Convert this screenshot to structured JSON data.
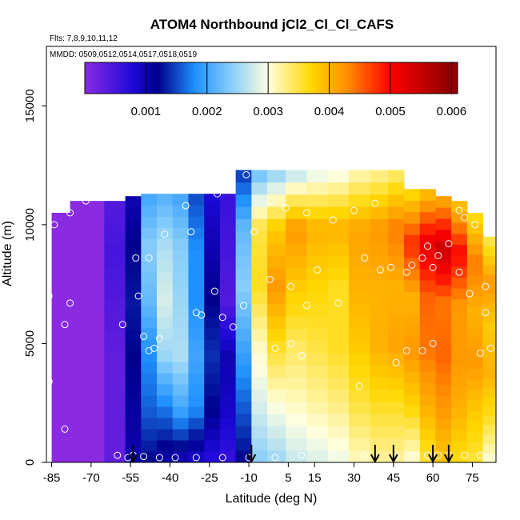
{
  "chart_data": {
    "type": "heatmap",
    "title": "ATOM4 Northbound jCl2_Cl_Cl_CAFS",
    "subtitle_flights": "Flts: 7,8,9,10,11,12",
    "subtitle_dates": "MMDD: 0509,0512,0514,0517,0518,0519",
    "xlabel": "Latitude (deg N)",
    "ylabel": "Altitude (m)",
    "xlim": [
      -87,
      84
    ],
    "ylim": [
      0,
      17500
    ],
    "x_ticks": [
      -85,
      -70,
      -55,
      -40,
      -25,
      -10,
      5,
      15,
      30,
      45,
      60,
      75
    ],
    "x_tick_labels": [
      "-85",
      "-70",
      "-55",
      "-40",
      "-25",
      "-10",
      "5",
      "15",
      "30",
      "45",
      "60",
      "75"
    ],
    "y_ticks": [
      0,
      5000,
      10000,
      15000
    ],
    "y_tick_labels": [
      "0",
      "5000",
      "10000",
      "15000"
    ],
    "colorbar": {
      "range": [
        0.0,
        0.0061
      ],
      "ticks": [
        0.001,
        0.002,
        0.003,
        0.004,
        0.005,
        0.006
      ],
      "tick_labels": [
        "0.001",
        "0.002",
        "0.003",
        "0.004",
        "0.005",
        "0.006"
      ]
    },
    "color_stops": [
      "#8a2be2",
      "#1c08d8",
      "#00008c",
      "#1e90ff",
      "#87cefa",
      "#ffffe0",
      "#ffd700",
      "#ff8c00",
      "#ff0000",
      "#8b0000"
    ],
    "colorbar_values": [
      0.0,
      0.0008,
      0.0012,
      0.0018,
      0.0024,
      0.003,
      0.0037,
      0.0043,
      0.005,
      0.006
    ],
    "grid": false,
    "field_columns": [
      {
        "lat": -86,
        "top": 10500,
        "bottom": 0,
        "values": [
          0.0,
          0.0,
          0.0,
          0.0,
          0.0,
          0.0
        ]
      },
      {
        "lat": -70,
        "top": 11000,
        "bottom": 0,
        "values": [
          0.0,
          0.0,
          0.0,
          0.0,
          0.0,
          0.0
        ]
      },
      {
        "lat": -60,
        "top": 11000,
        "bottom": 0,
        "values": [
          0.0003,
          0.0003,
          0.0003,
          0.0004,
          0.0005,
          0.0004
        ]
      },
      {
        "lat": -54,
        "top": 11200,
        "bottom": 0,
        "values": [
          0.001,
          0.0011,
          0.0012,
          0.0013,
          0.0012,
          0.001
        ]
      },
      {
        "lat": -48,
        "top": 11300,
        "bottom": 0,
        "values": [
          0.0012,
          0.0016,
          0.0018,
          0.0022,
          0.0024,
          0.002
        ]
      },
      {
        "lat": -42,
        "top": 11300,
        "bottom": 0,
        "values": [
          0.001,
          0.0017,
          0.0025,
          0.0028,
          0.0026,
          0.0021
        ]
      },
      {
        "lat": -36,
        "top": 11300,
        "bottom": 0,
        "values": [
          0.0009,
          0.002,
          0.0026,
          0.0025,
          0.0024,
          0.002
        ]
      },
      {
        "lat": -30,
        "top": 11300,
        "bottom": 0,
        "values": [
          0.0008,
          0.0018,
          0.002,
          0.0018,
          0.0018,
          0.0015
        ]
      },
      {
        "lat": -24,
        "top": 11300,
        "bottom": 0,
        "values": [
          0.0007,
          0.0012,
          0.0014,
          0.0012,
          0.001,
          0.0008
        ]
      },
      {
        "lat": -18,
        "top": 11300,
        "bottom": 0,
        "values": [
          0.0006,
          0.0009,
          0.001,
          0.0004,
          0.0005,
          0.0006
        ]
      },
      {
        "lat": -12,
        "top": 12300,
        "bottom": 0,
        "values": [
          0.0012,
          0.0016,
          0.002,
          0.0024,
          0.0022,
          0.0014
        ]
      },
      {
        "lat": -6,
        "top": 12300,
        "bottom": 0,
        "values": [
          0.0024,
          0.0028,
          0.0031,
          0.0036,
          0.0035,
          0.0022
        ]
      },
      {
        "lat": 0,
        "top": 12300,
        "bottom": 0,
        "values": [
          0.0025,
          0.003,
          0.0036,
          0.0042,
          0.0038,
          0.0024
        ]
      },
      {
        "lat": 8,
        "top": 12300,
        "bottom": 0,
        "values": [
          0.0027,
          0.0031,
          0.0034,
          0.0038,
          0.0042,
          0.0026
        ]
      },
      {
        "lat": 16,
        "top": 12300,
        "bottom": 0,
        "values": [
          0.0028,
          0.0032,
          0.0035,
          0.0037,
          0.004,
          0.0028
        ]
      },
      {
        "lat": 24,
        "top": 12300,
        "bottom": 0,
        "values": [
          0.0029,
          0.0033,
          0.0036,
          0.0036,
          0.004,
          0.0029
        ]
      },
      {
        "lat": 32,
        "top": 12300,
        "bottom": 0,
        "values": [
          0.0031,
          0.0035,
          0.0038,
          0.004,
          0.0041,
          0.0031
        ]
      },
      {
        "lat": 40,
        "top": 12300,
        "bottom": 0,
        "values": [
          0.0032,
          0.0036,
          0.004,
          0.004,
          0.0042,
          0.0032
        ]
      },
      {
        "lat": 46,
        "top": 12300,
        "bottom": 0,
        "values": [
          0.0032,
          0.0036,
          0.0041,
          0.004,
          0.0044,
          0.0033
        ]
      },
      {
        "lat": 52,
        "top": 11500,
        "bottom": 0,
        "values": [
          0.003,
          0.0037,
          0.0042,
          0.004,
          0.0048,
          0.0036
        ]
      },
      {
        "lat": 58,
        "top": 11500,
        "bottom": 0,
        "values": [
          0.0035,
          0.004,
          0.0044,
          0.0045,
          0.0052,
          0.0038
        ]
      },
      {
        "lat": 64,
        "top": 11200,
        "bottom": 0,
        "values": [
          0.0038,
          0.0042,
          0.0045,
          0.0044,
          0.0055,
          0.004
        ]
      },
      {
        "lat": 70,
        "top": 11000,
        "bottom": 0,
        "values": [
          0.0036,
          0.004,
          0.0042,
          0.0042,
          0.005,
          0.0038
        ]
      },
      {
        "lat": 76,
        "top": 10500,
        "bottom": 0,
        "values": [
          0.0035,
          0.0038,
          0.0042,
          0.004,
          0.0044,
          0.0036
        ]
      },
      {
        "lat": 82,
        "top": 9500,
        "bottom": 0,
        "values": [
          0.003,
          0.0036,
          0.004,
          0.0038,
          0.0042,
          0.0034
        ]
      }
    ],
    "observation_points": [
      [
        -84,
        10000
      ],
      [
        -78,
        10500
      ],
      [
        -72,
        11000
      ],
      [
        -68,
        11200
      ],
      [
        -86,
        7000
      ],
      [
        -80,
        5800
      ],
      [
        -78,
        6700
      ],
      [
        -86,
        3400
      ],
      [
        -80,
        1400
      ],
      [
        -53,
        8600
      ],
      [
        -48,
        8600
      ],
      [
        -52,
        7000
      ],
      [
        -58,
        5800
      ],
      [
        -50,
        5300
      ],
      [
        -46,
        4800
      ],
      [
        -44,
        5200
      ],
      [
        -48,
        4700
      ],
      [
        -42,
        9600
      ],
      [
        -34,
        10800
      ],
      [
        -32,
        9700
      ],
      [
        -30,
        6300
      ],
      [
        -22,
        11300
      ],
      [
        -23,
        7200
      ],
      [
        -28,
        6200
      ],
      [
        -20,
        6100
      ],
      [
        -16,
        5700
      ],
      [
        -12,
        6600
      ],
      [
        -8,
        9700
      ],
      [
        -11,
        12100
      ],
      [
        -2,
        11000
      ],
      [
        4,
        10700
      ],
      [
        12,
        10500
      ],
      [
        22,
        10200
      ],
      [
        30,
        10600
      ],
      [
        38,
        10900
      ],
      [
        -2,
        7700
      ],
      [
        6,
        7400
      ],
      [
        12,
        6600
      ],
      [
        16,
        8100
      ],
      [
        24,
        6700
      ],
      [
        34,
        8600
      ],
      [
        40,
        8100
      ],
      [
        44,
        8200
      ],
      [
        0,
        4800
      ],
      [
        6,
        5000
      ],
      [
        10,
        4500
      ],
      [
        32,
        3200
      ],
      [
        46,
        4200
      ],
      [
        50,
        4700
      ],
      [
        56,
        4700
      ],
      [
        60,
        5000
      ],
      [
        50,
        8000
      ],
      [
        52,
        8300
      ],
      [
        56,
        8600
      ],
      [
        58,
        9100
      ],
      [
        60,
        8200
      ],
      [
        62,
        8700
      ],
      [
        66,
        9200
      ],
      [
        70,
        10600
      ],
      [
        72,
        10300
      ],
      [
        76,
        10000
      ],
      [
        70,
        8000
      ],
      [
        74,
        7100
      ],
      [
        80,
        6300
      ],
      [
        82,
        4800
      ],
      [
        78,
        4600
      ],
      [
        80,
        7400
      ],
      [
        -44,
        200
      ],
      [
        -38,
        200
      ],
      [
        -30,
        200
      ],
      [
        -20,
        200
      ],
      [
        -10,
        200
      ],
      [
        0,
        200
      ],
      [
        10,
        300
      ],
      [
        22,
        300
      ],
      [
        34,
        300
      ],
      [
        46,
        250
      ],
      [
        52,
        300
      ],
      [
        58,
        300
      ],
      [
        62,
        300
      ],
      [
        66,
        300
      ],
      [
        72,
        300
      ],
      [
        78,
        300
      ],
      [
        -56,
        200
      ],
      [
        -54,
        300
      ],
      [
        -50,
        250
      ],
      [
        -60,
        300
      ]
    ],
    "arrow_latitudes": [
      -54,
      -9,
      38,
      45,
      60,
      66
    ]
  }
}
